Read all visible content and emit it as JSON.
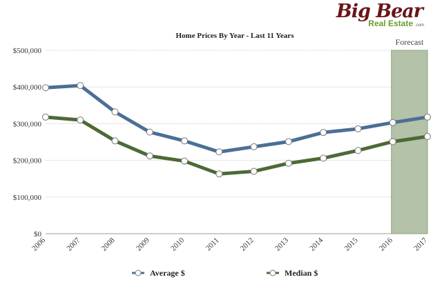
{
  "logo": {
    "big": "Big Bear",
    "sub": "Real Estate",
    "domain": ".com"
  },
  "colors": {
    "average": "#4b6f96",
    "median": "#4c6a36",
    "forecast": "#b3c2a8",
    "grid": "#cccccc"
  },
  "chart_data": {
    "type": "line",
    "title": "Home Prices By Year - Last 11 Years",
    "categories": [
      "2006",
      "2007",
      "2008",
      "2009",
      "2010",
      "2011",
      "2012",
      "2013",
      "2014",
      "2015",
      "2016",
      "2017"
    ],
    "series": [
      {
        "name": "Average $",
        "color": "#4b6f96",
        "values": [
          398000,
          404000,
          332000,
          277000,
          253000,
          223000,
          237000,
          251000,
          276000,
          286000,
          303000,
          318000
        ]
      },
      {
        "name": "Median $",
        "color": "#4c6a36",
        "values": [
          318000,
          310000,
          253000,
          212000,
          198000,
          163000,
          170000,
          192000,
          206000,
          227000,
          251000,
          265000
        ]
      }
    ],
    "ylim": [
      0,
      500000
    ],
    "yticks": [
      0,
      100000,
      200000,
      300000,
      400000,
      500000
    ],
    "ytick_labels": [
      "$0",
      "$100,000",
      "$200,000",
      "$300,000",
      "$400,000",
      "$500,000"
    ],
    "xlabel": "",
    "ylabel": "",
    "grid": true,
    "legend": "bottom",
    "forecast": {
      "label": "Forecast",
      "from": "2016",
      "to": "2017"
    }
  }
}
